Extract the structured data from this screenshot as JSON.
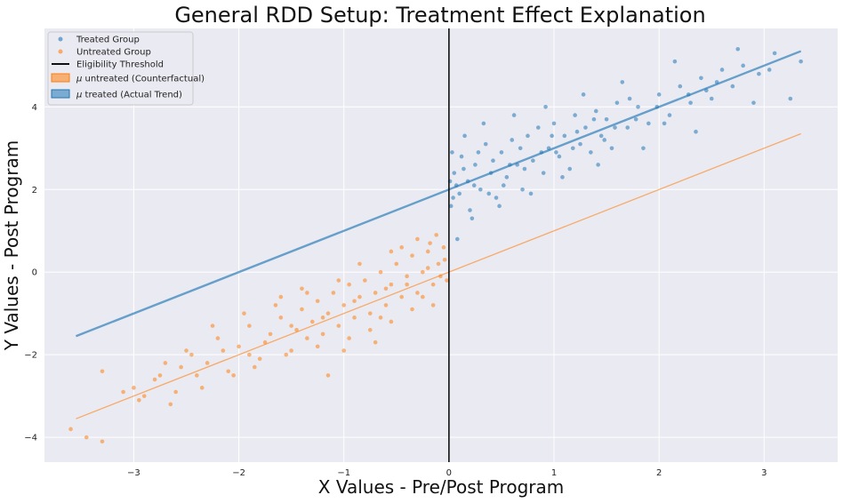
{
  "chart_data": {
    "type": "scatter",
    "title": "General RDD Setup: Treatment Effect Explanation",
    "xlabel": "X Values - Pre/Post Program",
    "ylabel": "Y Values - Post Program",
    "xlim": [
      -3.85,
      3.7
    ],
    "ylim": [
      -4.6,
      5.9
    ],
    "xticks": [
      -3,
      -2,
      -1,
      0,
      1,
      2,
      3
    ],
    "yticks": [
      -4,
      -2,
      0,
      2,
      4
    ],
    "xtick_labels": [
      "−3",
      "−2",
      "−1",
      "0",
      "1",
      "2",
      "3"
    ],
    "ytick_labels": [
      "−4",
      "−2",
      "0",
      "2",
      "4"
    ],
    "grid": true,
    "legend_position": "top-left",
    "colors": {
      "treated": "#1f77b4",
      "untreated": "#ff7f0e",
      "threshold": "#111111",
      "background": "#eaeaf2",
      "grid": "#ffffff"
    },
    "threshold_x": 0,
    "series": [
      {
        "name": "Treated Group",
        "kind": "scatter",
        "color": "#1f77b4",
        "points": [
          [
            0.02,
            1.6
          ],
          [
            0.05,
            2.4
          ],
          [
            0.1,
            1.9
          ],
          [
            0.12,
            2.8
          ],
          [
            0.18,
            2.2
          ],
          [
            0.2,
            1.5
          ],
          [
            0.25,
            2.6
          ],
          [
            0.3,
            2.0
          ],
          [
            0.35,
            3.1
          ],
          [
            0.4,
            2.4
          ],
          [
            0.45,
            1.8
          ],
          [
            0.5,
            2.9
          ],
          [
            0.55,
            2.3
          ],
          [
            0.6,
            3.2
          ],
          [
            0.65,
            2.6
          ],
          [
            0.7,
            2.0
          ],
          [
            0.75,
            3.3
          ],
          [
            0.8,
            2.7
          ],
          [
            0.85,
            3.5
          ],
          [
            0.9,
            2.4
          ],
          [
            0.95,
            3.0
          ],
          [
            1.0,
            3.6
          ],
          [
            1.05,
            2.8
          ],
          [
            1.1,
            3.3
          ],
          [
            1.15,
            2.5
          ],
          [
            1.2,
            3.8
          ],
          [
            1.25,
            3.1
          ],
          [
            1.3,
            3.5
          ],
          [
            1.35,
            2.9
          ],
          [
            1.4,
            3.9
          ],
          [
            1.45,
            3.3
          ],
          [
            1.5,
            3.7
          ],
          [
            1.55,
            3.0
          ],
          [
            1.6,
            4.1
          ],
          [
            1.7,
            3.5
          ],
          [
            1.8,
            4.0
          ],
          [
            1.9,
            3.6
          ],
          [
            2.0,
            4.3
          ],
          [
            2.1,
            3.8
          ],
          [
            2.2,
            4.5
          ],
          [
            2.3,
            4.1
          ],
          [
            2.4,
            4.7
          ],
          [
            2.5,
            4.2
          ],
          [
            2.6,
            4.9
          ],
          [
            2.7,
            4.5
          ],
          [
            2.8,
            5.0
          ],
          [
            2.95,
            4.8
          ],
          [
            3.1,
            5.3
          ],
          [
            3.25,
            4.2
          ],
          [
            3.35,
            5.1
          ],
          [
            0.08,
            0.8
          ],
          [
            0.15,
            3.3
          ],
          [
            0.22,
            1.3
          ],
          [
            0.33,
            3.6
          ],
          [
            0.48,
            1.6
          ],
          [
            0.62,
            3.8
          ],
          [
            0.78,
            1.9
          ],
          [
            0.92,
            4.0
          ],
          [
            1.08,
            2.3
          ],
          [
            1.28,
            4.3
          ],
          [
            1.42,
            2.6
          ],
          [
            1.65,
            4.6
          ],
          [
            1.85,
            3.0
          ],
          [
            2.15,
            5.1
          ],
          [
            2.35,
            3.4
          ],
          [
            2.75,
            5.4
          ],
          [
            2.9,
            4.1
          ],
          [
            0.03,
            2.9
          ],
          [
            0.07,
            2.1
          ],
          [
            0.28,
            2.9
          ],
          [
            0.38,
            1.9
          ],
          [
            0.58,
            2.6
          ],
          [
            0.68,
            3.0
          ],
          [
            0.88,
            2.9
          ],
          [
            0.98,
            3.3
          ],
          [
            1.18,
            3.0
          ],
          [
            1.38,
            3.7
          ],
          [
            1.58,
            3.5
          ],
          [
            1.78,
            3.7
          ],
          [
            1.98,
            4.0
          ],
          [
            2.28,
            4.3
          ],
          [
            2.55,
            4.6
          ],
          [
            0.01,
            2.2
          ],
          [
            0.04,
            1.8
          ],
          [
            0.14,
            2.5
          ],
          [
            0.24,
            2.1
          ],
          [
            0.42,
            2.7
          ],
          [
            0.52,
            2.1
          ],
          [
            0.72,
            2.5
          ],
          [
            1.02,
            2.9
          ],
          [
            1.22,
            3.4
          ],
          [
            1.48,
            3.2
          ],
          [
            1.72,
            4.2
          ],
          [
            2.05,
            3.6
          ],
          [
            2.45,
            4.4
          ],
          [
            3.05,
            4.9
          ]
        ]
      },
      {
        "name": "Untreated Group",
        "kind": "scatter",
        "color": "#ff7f0e",
        "points": [
          [
            -3.6,
            -3.8
          ],
          [
            -3.45,
            -4.0
          ],
          [
            -3.3,
            -4.1
          ],
          [
            -3.3,
            -2.4
          ],
          [
            -3.0,
            -2.8
          ],
          [
            -2.95,
            -3.1
          ],
          [
            -2.8,
            -2.6
          ],
          [
            -2.7,
            -2.2
          ],
          [
            -2.6,
            -2.9
          ],
          [
            -2.5,
            -1.9
          ],
          [
            -2.4,
            -2.5
          ],
          [
            -2.3,
            -2.2
          ],
          [
            -2.2,
            -1.6
          ],
          [
            -2.1,
            -2.4
          ],
          [
            -2.0,
            -1.8
          ],
          [
            -1.9,
            -1.3
          ],
          [
            -1.8,
            -2.1
          ],
          [
            -1.7,
            -1.5
          ],
          [
            -1.6,
            -1.1
          ],
          [
            -1.5,
            -1.9
          ],
          [
            -1.45,
            -1.4
          ],
          [
            -1.4,
            -0.9
          ],
          [
            -1.35,
            -1.6
          ],
          [
            -1.3,
            -1.2
          ],
          [
            -1.25,
            -0.7
          ],
          [
            -1.2,
            -1.5
          ],
          [
            -1.15,
            -1.0
          ],
          [
            -1.1,
            -0.5
          ],
          [
            -1.05,
            -1.3
          ],
          [
            -1.0,
            -0.8
          ],
          [
            -0.95,
            -0.3
          ],
          [
            -0.9,
            -1.1
          ],
          [
            -0.85,
            -0.6
          ],
          [
            -0.8,
            -0.2
          ],
          [
            -0.75,
            -1.0
          ],
          [
            -0.7,
            -0.5
          ],
          [
            -0.65,
            0.0
          ],
          [
            -0.6,
            -0.8
          ],
          [
            -0.55,
            -0.3
          ],
          [
            -0.5,
            0.2
          ],
          [
            -0.45,
            -0.6
          ],
          [
            -0.4,
            -0.1
          ],
          [
            -0.35,
            0.4
          ],
          [
            -0.3,
            -0.5
          ],
          [
            -0.25,
            0.0
          ],
          [
            -0.2,
            0.5
          ],
          [
            -0.15,
            -0.3
          ],
          [
            -0.1,
            0.2
          ],
          [
            -0.05,
            0.6
          ],
          [
            -0.02,
            -0.2
          ],
          [
            -2.65,
            -3.2
          ],
          [
            -2.35,
            -2.8
          ],
          [
            -2.05,
            -2.5
          ],
          [
            -1.85,
            -2.3
          ],
          [
            -1.55,
            -2.0
          ],
          [
            -1.25,
            -1.8
          ],
          [
            -1.15,
            -2.5
          ],
          [
            -0.95,
            -1.6
          ],
          [
            -0.75,
            -1.4
          ],
          [
            -0.55,
            -1.2
          ],
          [
            -0.35,
            -0.9
          ],
          [
            -0.15,
            -0.8
          ],
          [
            -2.25,
            -1.3
          ],
          [
            -1.95,
            -1.0
          ],
          [
            -1.65,
            -0.8
          ],
          [
            -1.35,
            -0.5
          ],
          [
            -1.05,
            -0.2
          ],
          [
            -0.85,
            0.2
          ],
          [
            -0.55,
            0.5
          ],
          [
            -0.3,
            0.8
          ],
          [
            -0.12,
            0.9
          ],
          [
            -3.1,
            -2.9
          ],
          [
            -2.9,
            -3.0
          ],
          [
            -2.45,
            -2.0
          ],
          [
            -2.15,
            -1.9
          ],
          [
            -1.75,
            -1.7
          ],
          [
            -1.5,
            -1.3
          ],
          [
            -1.2,
            -1.1
          ],
          [
            -0.9,
            -0.7
          ],
          [
            -0.6,
            -0.4
          ],
          [
            -0.4,
            -0.3
          ],
          [
            -0.2,
            0.1
          ],
          [
            -0.08,
            -0.1
          ],
          [
            -0.04,
            0.3
          ],
          [
            -1.6,
            -0.6
          ],
          [
            -1.0,
            -1.9
          ],
          [
            -0.7,
            -1.7
          ],
          [
            -2.55,
            -2.3
          ],
          [
            -2.75,
            -2.5
          ],
          [
            -1.9,
            -2.0
          ],
          [
            -0.45,
            0.6
          ],
          [
            -0.25,
            -0.6
          ],
          [
            -0.65,
            -1.1
          ],
          [
            -1.4,
            -0.4
          ],
          [
            -0.18,
            0.7
          ]
        ]
      },
      {
        "name": "Eligibility Threshold",
        "kind": "vline",
        "color": "#111111",
        "x": 0
      },
      {
        "name": "μ untreated (Counterfactual)",
        "legend_symbol": "μ",
        "legend_rest": " untreated (Counterfactual)",
        "kind": "line",
        "color": "#ff7f0e",
        "points": [
          [
            -3.55,
            -3.55
          ],
          [
            3.35,
            3.35
          ]
        ]
      },
      {
        "name": "μ treated (Actual Trend)",
        "legend_symbol": "μ",
        "legend_rest": " treated (Actual Trend)",
        "kind": "line",
        "color": "#1f77b4",
        "points": [
          [
            -3.55,
            -1.55
          ],
          [
            3.35,
            5.35
          ]
        ]
      }
    ]
  }
}
